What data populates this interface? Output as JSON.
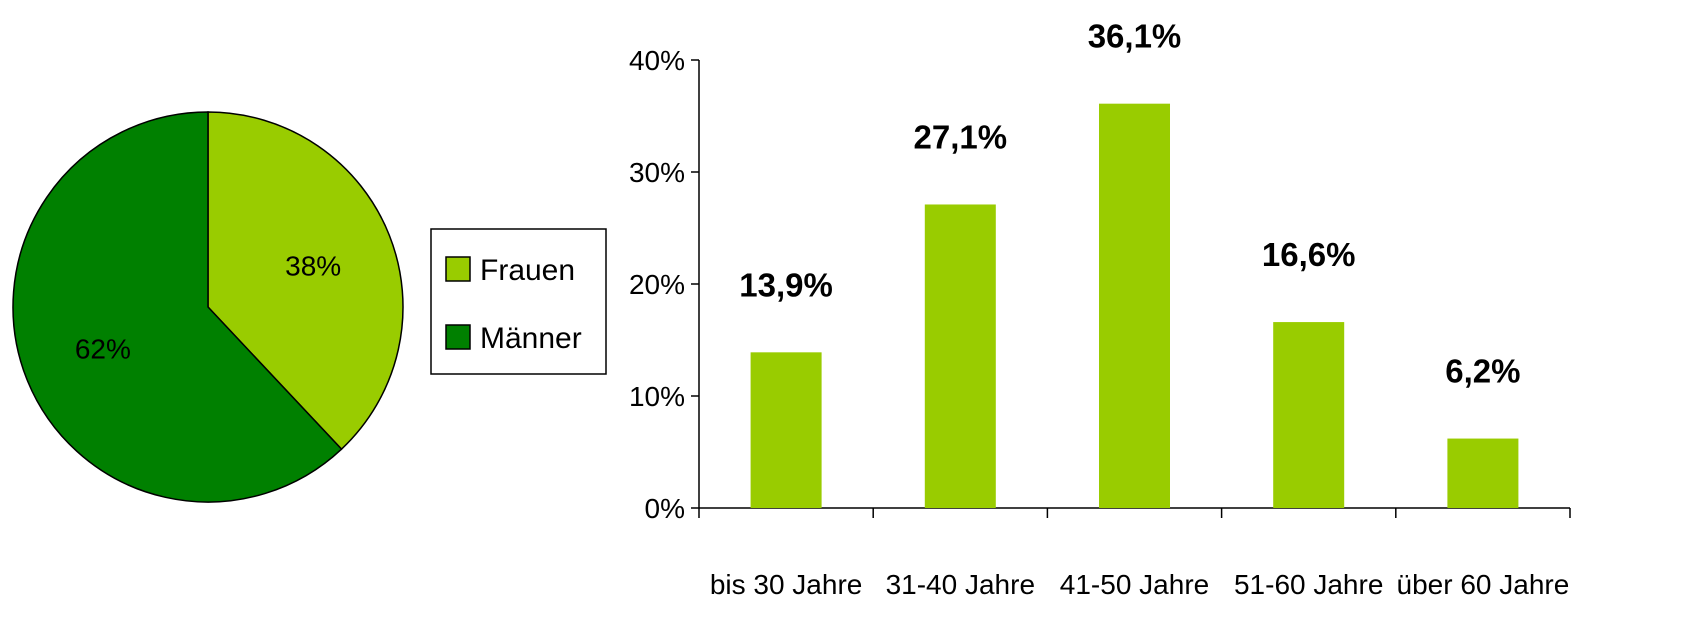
{
  "colors": {
    "frauen": "#99cc00",
    "maenner": "#008000",
    "bar": "#99cc00"
  },
  "chart_data": [
    {
      "type": "pie",
      "slices": [
        {
          "name": "Frauen",
          "value": 38,
          "label": "38%"
        },
        {
          "name": "Männer",
          "value": 62,
          "label": "62%"
        }
      ],
      "legend": [
        "Frauen",
        "Männer"
      ],
      "legend_position": "right"
    },
    {
      "type": "bar",
      "categories": [
        "bis 30 Jahre",
        "31-40 Jahre",
        "41-50 Jahre",
        "51-60 Jahre",
        "über 60 Jahre"
      ],
      "values": [
        13.9,
        27.1,
        36.1,
        16.6,
        6.2
      ],
      "data_labels": [
        "13,9%",
        "27,1%",
        "36,1%",
        "16,6%",
        "6,2%"
      ],
      "yticks": [
        "0%",
        "10%",
        "20%",
        "30%",
        "40%"
      ],
      "ylim": [
        0,
        40
      ],
      "grid": false
    }
  ]
}
